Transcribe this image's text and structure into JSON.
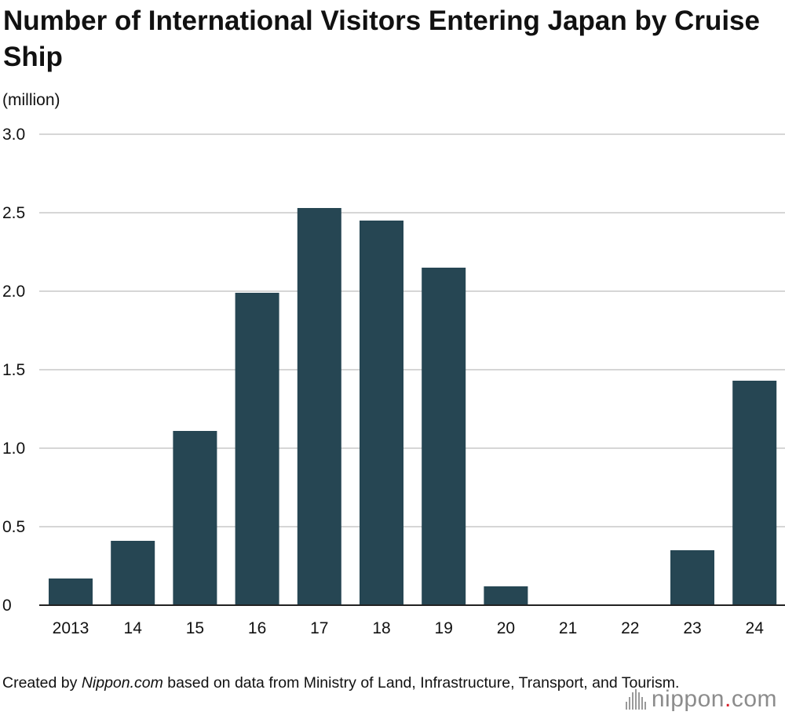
{
  "header": {
    "title": "Number of International Visitors Entering Japan by Cruise Ship",
    "unit_label": "(million)"
  },
  "footer": {
    "source_prefix": "Created by ",
    "source_em": "Nippon.com",
    "source_suffix": " based on data from Ministry of Land, Infrastructure, Transport, and Tourism.",
    "logo_name": "nippon",
    "logo_dot": ".",
    "logo_tld": "com"
  },
  "colors": {
    "bar": "#264653",
    "grid": "#c8c8c8",
    "axis": "#222222",
    "logo_accent": "#d8202a"
  },
  "chart_data": {
    "type": "bar",
    "title": "Number of International Visitors Entering Japan by Cruise Ship",
    "xlabel": "",
    "ylabel": "(million)",
    "categories": [
      "2013",
      "14",
      "15",
      "16",
      "17",
      "18",
      "19",
      "20",
      "21",
      "22",
      "23",
      "24"
    ],
    "values": [
      0.17,
      0.41,
      1.11,
      1.99,
      2.53,
      2.45,
      2.15,
      0.12,
      0,
      0,
      0.35,
      1.43
    ],
    "ylim": [
      0,
      3.0
    ],
    "yticks": [
      "0",
      "0.5",
      "1.0",
      "1.5",
      "2.0",
      "2.5",
      "3.0"
    ],
    "ytick_values": [
      0,
      0.5,
      1.0,
      1.5,
      2.0,
      2.5,
      3.0
    ],
    "grid": true
  }
}
